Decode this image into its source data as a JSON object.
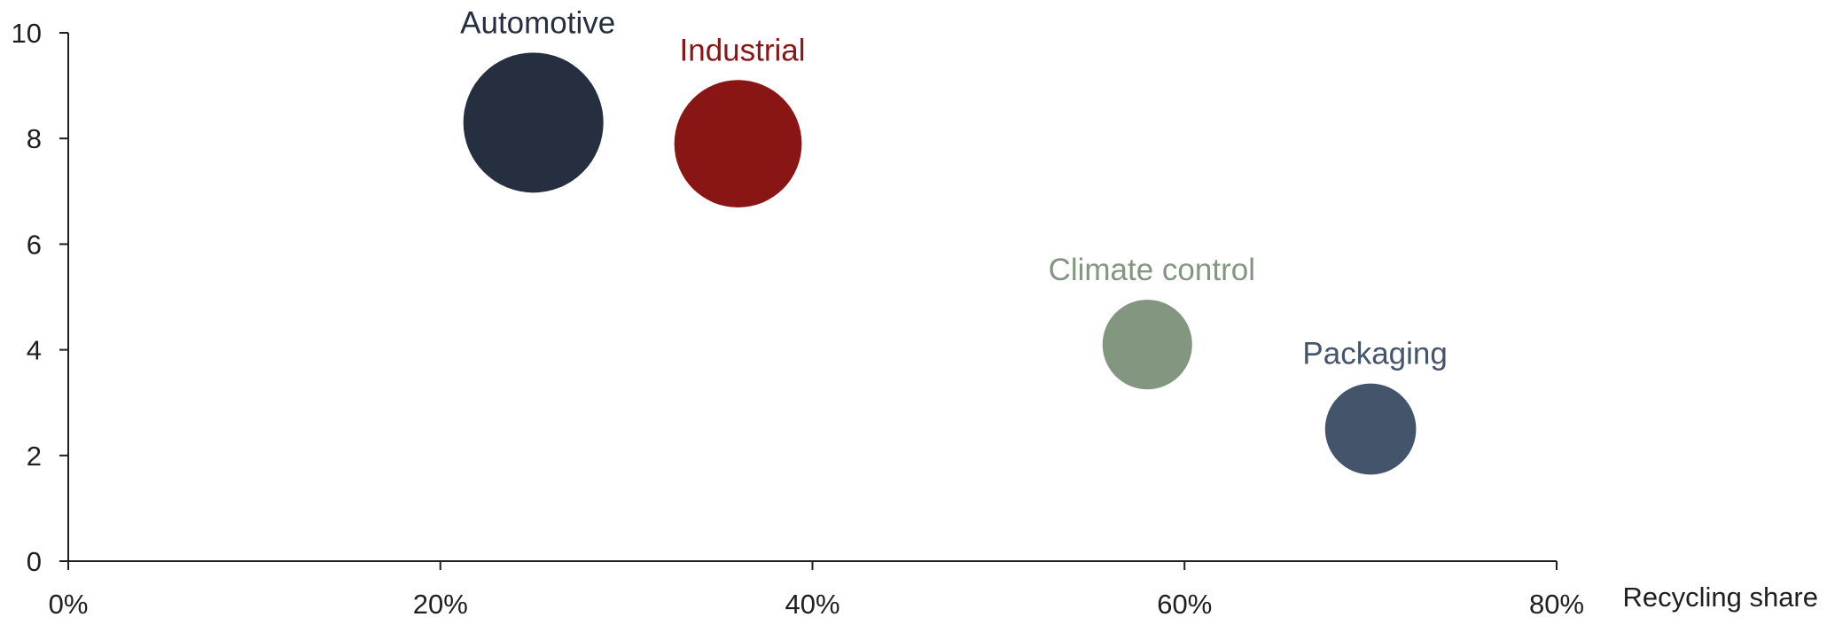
{
  "chart_data": {
    "type": "scatter",
    "title": "",
    "xlabel": "Recycling share",
    "ylabel": "",
    "xlim": [
      0,
      80
    ],
    "ylim": [
      0,
      10
    ],
    "x_ticks": [
      0,
      20,
      40,
      60,
      80
    ],
    "x_tick_labels": [
      "0%",
      "20%",
      "40%",
      "60%",
      "80%"
    ],
    "y_ticks": [
      0,
      2,
      4,
      6,
      8,
      10
    ],
    "y_tick_labels": [
      "0",
      "2",
      "4",
      "6",
      "8",
      "10"
    ],
    "grid": false,
    "legend": "none",
    "points": [
      {
        "label": "Automotive",
        "x": 25,
        "y": 8.3,
        "relative_size": 1.0,
        "color": "#252f40"
      },
      {
        "label": "Industrial",
        "x": 36,
        "y": 7.9,
        "relative_size": 0.91,
        "color": "#891515"
      },
      {
        "label": "Climate control",
        "x": 58,
        "y": 4.1,
        "relative_size": 0.64,
        "color": "#839680"
      },
      {
        "label": "Packaging",
        "x": 70,
        "y": 2.5,
        "relative_size": 0.65,
        "color": "#43546b"
      }
    ]
  }
}
